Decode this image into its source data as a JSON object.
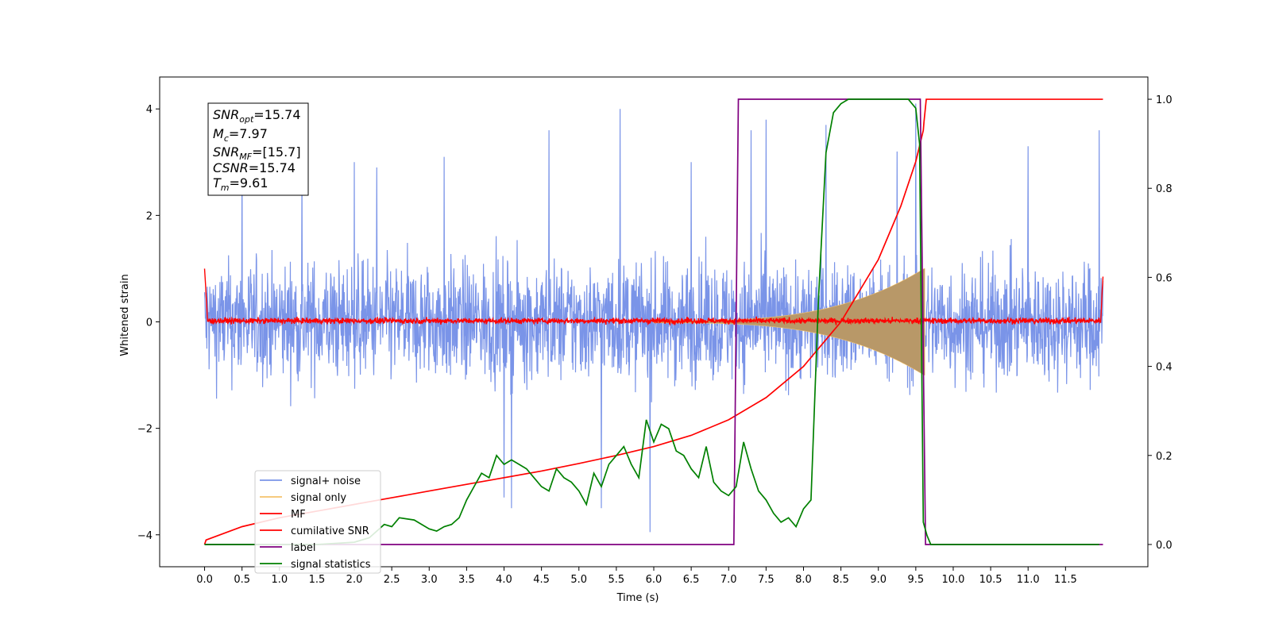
{
  "chart_data": {
    "type": "line",
    "title": "",
    "xlabel": "Time (s)",
    "ylabel": "Whitened strain",
    "y2label": "",
    "xlim": [
      -0.6,
      12.6
    ],
    "ylim": [
      -4.6,
      4.6
    ],
    "y2lim": [
      -0.05,
      1.05
    ],
    "xticks": [
      "0.0",
      "0.5",
      "1.0",
      "1.5",
      "2.0",
      "2.5",
      "3.0",
      "3.5",
      "4.0",
      "4.5",
      "5.0",
      "5.5",
      "6.0",
      "6.5",
      "7.0",
      "7.5",
      "8.0",
      "8.5",
      "9.0",
      "9.5",
      "10.0",
      "10.5",
      "11.0",
      "11.5"
    ],
    "yticks": [
      "4",
      "2",
      "0",
      "−2",
      "−4"
    ],
    "y2ticks": [
      "1.0",
      "0.8",
      "0.6",
      "0.4",
      "0.2",
      "0.0"
    ],
    "legend_position": "lower-left",
    "colors": {
      "signal_noise": "#7a94e8",
      "signal_only": "#f5c26b",
      "chirp_fill": "#b89868",
      "mf": "#ff0000",
      "cumulative_snr": "#ff0000",
      "label": "#800080",
      "signal_statistics": "#008000"
    },
    "legend": [
      {
        "key": "signal_noise",
        "text": "signal+ noise"
      },
      {
        "key": "signal_only",
        "text": "signal only"
      },
      {
        "key": "mf",
        "text": "MF"
      },
      {
        "key": "cumulative_snr",
        "text": "cumilative SNR"
      },
      {
        "key": "label",
        "text": "label"
      },
      {
        "key": "signal_statistics",
        "text": "signal statistics"
      }
    ],
    "series": [
      {
        "name": "signal+ noise",
        "key": "signal_noise",
        "axis": "left",
        "kind": "noise",
        "x_range": [
          0.0,
          12.0
        ],
        "envelope_abs": 2.6,
        "spikes": [
          [
            0.5,
            3.2
          ],
          [
            1.3,
            2.9
          ],
          [
            2.0,
            3.0
          ],
          [
            2.3,
            2.9
          ],
          [
            3.2,
            3.1
          ],
          [
            4.0,
            -3.3
          ],
          [
            4.1,
            -3.5
          ],
          [
            4.6,
            3.6
          ],
          [
            5.3,
            -3.5
          ],
          [
            5.55,
            4.0
          ],
          [
            5.95,
            -3.95
          ],
          [
            6.5,
            3.0
          ],
          [
            7.3,
            3.6
          ],
          [
            7.5,
            3.8
          ],
          [
            8.3,
            3.7
          ],
          [
            9.5,
            4.1
          ],
          [
            9.25,
            3.2
          ],
          [
            11.0,
            3.3
          ],
          [
            11.95,
            3.6
          ]
        ]
      },
      {
        "name": "signal only",
        "key": "signal_only",
        "axis": "left",
        "kind": "chirp",
        "x_range": [
          0.0,
          9.61
        ],
        "amplitude_start": 0.02,
        "amplitude_peak": 1.0
      },
      {
        "name": "MF",
        "key": "mf",
        "axis": "left",
        "kind": "noise",
        "x_range": [
          0.0,
          12.0
        ],
        "envelope_abs": 0.15,
        "endpoints": [
          [
            0.0,
            1.0
          ],
          [
            12.0,
            0.85
          ]
        ]
      },
      {
        "name": "cumilative SNR",
        "key": "cumulative_snr",
        "axis": "right",
        "x": [
          0.0,
          0.02,
          0.5,
          1.0,
          1.5,
          2.0,
          2.5,
          3.0,
          3.5,
          4.0,
          4.5,
          5.0,
          5.5,
          6.0,
          6.5,
          7.0,
          7.5,
          8.0,
          8.5,
          9.0,
          9.3,
          9.5,
          9.6,
          9.61
        ],
        "y": [
          0.0,
          0.01,
          0.04,
          0.06,
          0.075,
          0.09,
          0.105,
          0.12,
          0.135,
          0.15,
          0.165,
          0.182,
          0.2,
          0.22,
          0.245,
          0.28,
          0.33,
          0.4,
          0.5,
          0.64,
          0.76,
          0.86,
          0.93,
          0.95
        ]
      },
      {
        "name": "label",
        "key": "label",
        "axis": "right",
        "x": [
          0.0,
          7.07,
          7.13,
          9.56,
          9.63,
          12.0
        ],
        "y": [
          0.0,
          0.0,
          1.0,
          1.0,
          0.0,
          0.0
        ]
      },
      {
        "name": "signal statistics",
        "key": "signal_statistics",
        "axis": "right",
        "x": [
          0.0,
          0.5,
          1.0,
          1.5,
          2.0,
          2.2,
          2.4,
          2.5,
          2.6,
          2.8,
          3.0,
          3.1,
          3.2,
          3.3,
          3.4,
          3.5,
          3.6,
          3.7,
          3.8,
          3.9,
          4.0,
          4.1,
          4.2,
          4.3,
          4.4,
          4.5,
          4.6,
          4.7,
          4.8,
          4.9,
          5.0,
          5.1,
          5.2,
          5.3,
          5.4,
          5.5,
          5.6,
          5.7,
          5.8,
          5.9,
          6.0,
          6.1,
          6.2,
          6.3,
          6.4,
          6.5,
          6.6,
          6.7,
          6.8,
          6.9,
          7.0,
          7.1,
          7.2,
          7.3,
          7.4,
          7.5,
          7.6,
          7.7,
          7.8,
          7.9,
          8.0,
          8.1,
          8.2,
          8.3,
          8.4,
          8.5,
          8.6,
          8.7,
          8.8,
          9.0,
          9.2,
          9.4,
          9.5,
          9.55,
          9.6,
          9.65,
          9.7,
          9.8,
          10.0,
          11.0,
          11.95
        ],
        "y": [
          0.0,
          0.0,
          0.0,
          0.0,
          0.005,
          0.015,
          0.045,
          0.04,
          0.06,
          0.055,
          0.035,
          0.03,
          0.04,
          0.045,
          0.06,
          0.1,
          0.13,
          0.16,
          0.15,
          0.2,
          0.18,
          0.19,
          0.18,
          0.17,
          0.15,
          0.13,
          0.12,
          0.17,
          0.15,
          0.14,
          0.12,
          0.09,
          0.16,
          0.13,
          0.18,
          0.2,
          0.22,
          0.18,
          0.15,
          0.28,
          0.23,
          0.27,
          0.26,
          0.21,
          0.2,
          0.17,
          0.15,
          0.22,
          0.14,
          0.12,
          0.11,
          0.13,
          0.23,
          0.17,
          0.12,
          0.1,
          0.07,
          0.05,
          0.06,
          0.04,
          0.08,
          0.1,
          0.55,
          0.88,
          0.97,
          0.99,
          1.0,
          1.0,
          1.0,
          1.0,
          1.0,
          1.0,
          0.98,
          0.9,
          0.05,
          0.02,
          0.0,
          0.0,
          0.0,
          0.0,
          0.0
        ]
      }
    ],
    "annotation_box": {
      "snr_opt_name": "SNR",
      "snr_opt_sub": "opt",
      "snr_opt_value": "=15.74",
      "mc_name": "M",
      "mc_sub": "c",
      "mc_value": "=7.97",
      "snr_mf_name": "SNR",
      "snr_mf_sub": "MF",
      "snr_mf_value": "=[15.7]",
      "csnr_name": "CSNR",
      "csnr_value": "=15.74",
      "tm_name": "T",
      "tm_sub": "m",
      "tm_value": "=9.61"
    }
  }
}
